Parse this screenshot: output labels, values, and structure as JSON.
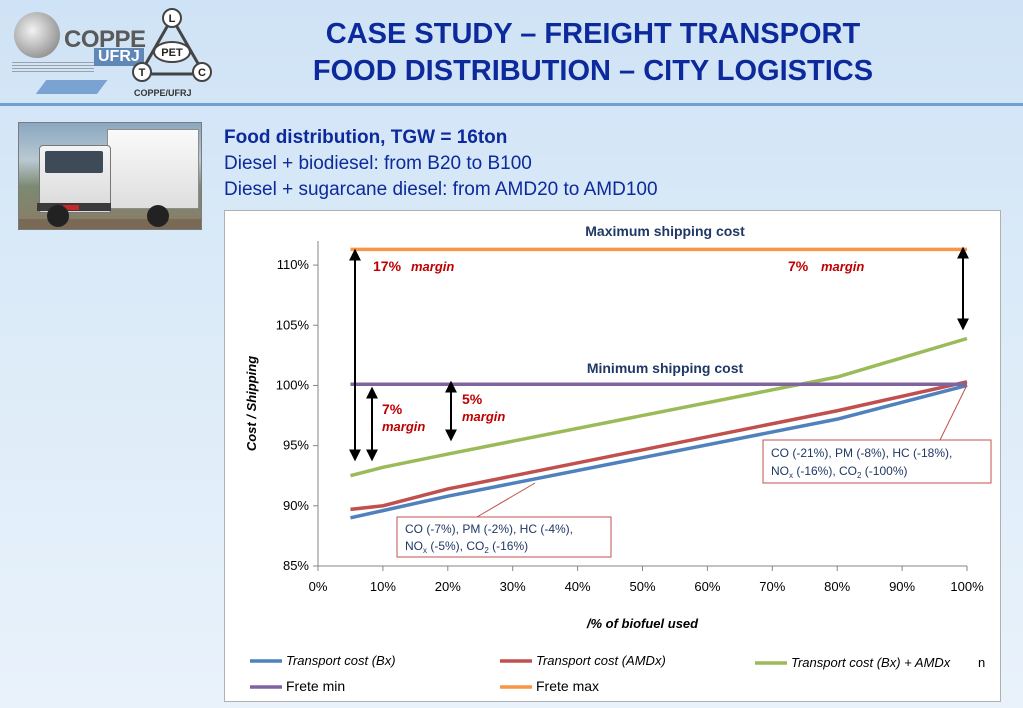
{
  "header": {
    "coppe_word": "COPPE",
    "ufrj_word": "UFRJ",
    "pet_center": "PET",
    "pet_letters": [
      "L",
      "T",
      "C"
    ],
    "pet_caption": "COPPE/UFRJ",
    "title_line1": "CASE STUDY – FREIGHT TRANSPORT",
    "title_line2": "FOOD DISTRIBUTION – CITY LOGISTICS"
  },
  "photo": {
    "subject": "truck-photo"
  },
  "info": {
    "line1": "Food distribution, TGW = 16ton",
    "line2": "Diesel + biodiesel: from B20 to B100",
    "line3": "Diesel + sugarcane diesel: from AMD20 to AMD100"
  },
  "chart_data": {
    "type": "line",
    "xlabel": "/% of biofuel used",
    "ylabel": "Cost / Shipping",
    "xlim": [
      0,
      100
    ],
    "ylim": [
      85,
      112
    ],
    "xticks": [
      0,
      10,
      20,
      30,
      40,
      50,
      60,
      70,
      80,
      90,
      100
    ],
    "xtick_labels": [
      "0%",
      "10%",
      "20%",
      "30%",
      "40%",
      "50%",
      "60%",
      "70%",
      "80%",
      "90%",
      "100%"
    ],
    "yticks": [
      85,
      90,
      95,
      100,
      105,
      110
    ],
    "ytick_labels": [
      "85%",
      "90%",
      "95%",
      "100%",
      "105%",
      "110%"
    ],
    "grid": false,
    "legend_position": "bottom",
    "series": [
      {
        "name": "Transport cost (Bx)",
        "color": "#4f81bd",
        "x": [
          5,
          10,
          20,
          80,
          100
        ],
        "y": [
          89.0,
          89.6,
          90.8,
          97.2,
          100.0
        ]
      },
      {
        "name": "Transport cost (AMDx)",
        "color": "#c0504d",
        "x": [
          5,
          10,
          20,
          80,
          100
        ],
        "y": [
          89.7,
          90.0,
          91.4,
          97.9,
          100.3
        ]
      },
      {
        "name": "Transport cost (Bx) + AMDx",
        "color": "#9bbb59",
        "x": [
          5,
          10,
          20,
          80,
          100
        ],
        "y": [
          92.5,
          93.2,
          94.3,
          100.7,
          103.9
        ]
      },
      {
        "name": "Frete min",
        "color": "#8064a2",
        "x": [
          5,
          100
        ],
        "y": [
          100.1,
          100.1
        ]
      },
      {
        "name": "Frete max",
        "color": "#f79646",
        "x": [
          5,
          100
        ],
        "y": [
          111.3,
          111.3
        ]
      }
    ],
    "legend_extra": "n",
    "annotations": {
      "max_label": "Maximum shipping cost",
      "min_label": "Minimum shipping cost",
      "margin17_value": "17%",
      "margin17_word": "margin",
      "margin7_top_value": "7%",
      "margin7_top_word": "margin",
      "margin7_value": "7%",
      "margin7_word": "margin",
      "margin5_value": "5%",
      "margin5_word": "margin",
      "box_left": {
        "line1": "CO (-7%), PM (-2%), HC (-4%),",
        "line2_a": "NO",
        "line2_sub_a": "x",
        "line2_b": " (-5%), CO",
        "line2_sub_b": "2",
        "line2_c": " (-16%)"
      },
      "box_right": {
        "line1": "CO (-21%), PM (-8%), HC (-18%),",
        "line2_a": "NO",
        "line2_sub_a": "x",
        "line2_b": " (-16%), CO",
        "line2_sub_b": "2",
        "line2_c": " (-100%)"
      }
    }
  }
}
